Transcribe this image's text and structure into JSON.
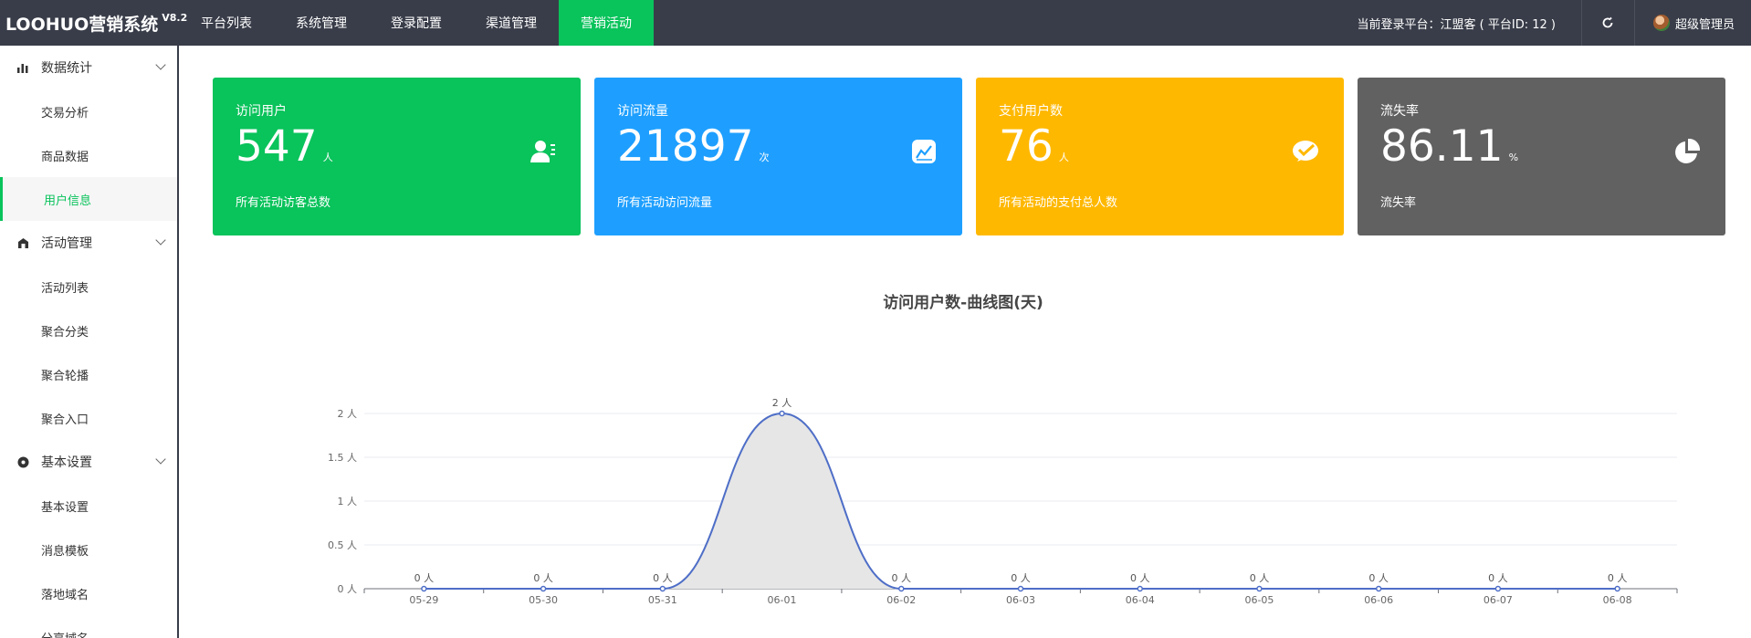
{
  "topbar": {
    "brand": "LOOHUO营销系统",
    "version": "V8.2",
    "nav": [
      "平台列表",
      "系统管理",
      "登录配置",
      "渠道管理",
      "营销活动"
    ],
    "active_nav_index": 4,
    "platform_info": "当前登录平台：江盟客 ( 平台ID: 12 )",
    "user_name": "超级管理员",
    "accent_color": "#09c35b",
    "bar_color": "#393d49"
  },
  "sidebar": {
    "groups": [
      {
        "label": "数据统计",
        "icon": "bar-chart-icon",
        "items": [
          "交易分析",
          "商品数据",
          "用户信息"
        ]
      },
      {
        "label": "活动管理",
        "icon": "shop-icon",
        "items": [
          "活动列表",
          "聚合分类",
          "聚合轮播",
          "聚合入口"
        ]
      },
      {
        "label": "基本设置",
        "icon": "settings-dot-icon",
        "items": [
          "基本设置",
          "消息模板",
          "落地域名",
          "分享域名"
        ]
      }
    ],
    "active_item": "用户信息"
  },
  "cards": [
    {
      "label": "访问用户",
      "value": "547",
      "unit": "人",
      "desc": "所有活动访客总数",
      "color": "#09c35b",
      "icon": "user-icon"
    },
    {
      "label": "访问流量",
      "value": "21897",
      "unit": "次",
      "desc": "所有活动访问流量",
      "color": "#1e9fff",
      "icon": "line-chart-icon"
    },
    {
      "label": "支付用户数",
      "value": "76",
      "unit": "人",
      "desc": "所有活动的支付总人数",
      "color": "#ffb800",
      "icon": "wechat-pay-icon"
    },
    {
      "label": "流失率",
      "value": "86.11",
      "unit": "%",
      "desc": "流失率",
      "color": "#616161",
      "icon": "pie-chart-icon"
    }
  ],
  "chart_data": {
    "type": "line",
    "title": "访问用户数-曲线图(天)",
    "categories": [
      "05-29",
      "05-30",
      "05-31",
      "06-01",
      "06-02",
      "06-03",
      "06-04",
      "06-05",
      "06-06",
      "06-07",
      "06-08"
    ],
    "values": [
      0,
      0,
      0,
      2,
      0,
      0,
      0,
      0,
      0,
      0,
      0
    ],
    "data_label_suffix": " 人",
    "yticks": [
      "0 人",
      "0.5 人",
      "1 人",
      "1.5 人",
      "2 人"
    ],
    "ylim": [
      0,
      2
    ],
    "smooth": true,
    "area_fill": true,
    "line_color": "#4e6ec7",
    "area_color": "#e6e6e6",
    "grid": true
  }
}
